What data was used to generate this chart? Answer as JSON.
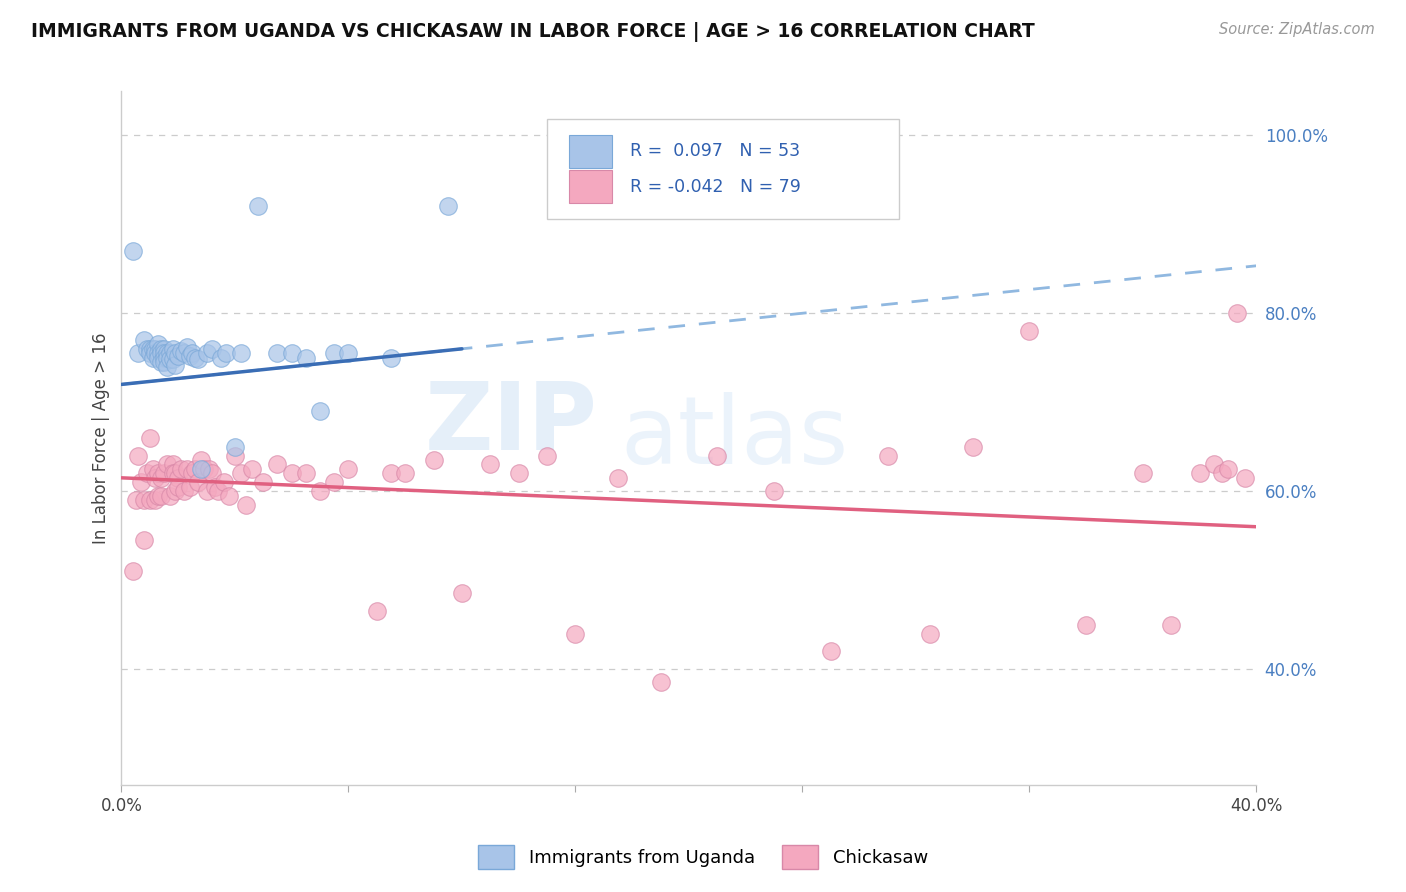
{
  "title": "IMMIGRANTS FROM UGANDA VS CHICKASAW IN LABOR FORCE | AGE > 16 CORRELATION CHART",
  "source": "Source: ZipAtlas.com",
  "ylabel": "In Labor Force | Age > 16",
  "xlim": [
    0.0,
    0.4
  ],
  "ylim": [
    0.27,
    1.05
  ],
  "xticks": [
    0.0,
    0.08,
    0.16,
    0.24,
    0.32,
    0.4
  ],
  "xtick_labels": [
    "0.0%",
    "",
    "",
    "",
    "",
    "40.0%"
  ],
  "yticks_right": [
    0.4,
    0.6,
    0.8,
    1.0
  ],
  "ytick_labels_right": [
    "40.0%",
    "60.0%",
    "80.0%",
    "100.0%"
  ],
  "legend_label1": "Immigrants from Uganda",
  "legend_label2": "Chickasaw",
  "color_blue": "#a8c4e8",
  "color_pink": "#f4a8bf",
  "color_blue_line": "#3a6db5",
  "color_pink_line": "#e06080",
  "color_blue_dashed": "#90b8e0",
  "watermark_zip": "ZIP",
  "watermark_atlas": "atlas",
  "blue_scatter_x": [
    0.004,
    0.006,
    0.008,
    0.009,
    0.01,
    0.01,
    0.011,
    0.011,
    0.012,
    0.012,
    0.013,
    0.013,
    0.013,
    0.014,
    0.014,
    0.014,
    0.015,
    0.015,
    0.015,
    0.015,
    0.016,
    0.016,
    0.016,
    0.017,
    0.017,
    0.018,
    0.018,
    0.019,
    0.019,
    0.02,
    0.021,
    0.022,
    0.023,
    0.024,
    0.025,
    0.026,
    0.027,
    0.028,
    0.03,
    0.032,
    0.035,
    0.037,
    0.04,
    0.042,
    0.048,
    0.055,
    0.06,
    0.065,
    0.07,
    0.075,
    0.08,
    0.095,
    0.115
  ],
  "blue_scatter_y": [
    0.87,
    0.755,
    0.77,
    0.76,
    0.76,
    0.755,
    0.76,
    0.75,
    0.76,
    0.755,
    0.765,
    0.755,
    0.75,
    0.76,
    0.755,
    0.745,
    0.76,
    0.755,
    0.75,
    0.745,
    0.755,
    0.75,
    0.74,
    0.755,
    0.748,
    0.76,
    0.748,
    0.755,
    0.742,
    0.752,
    0.758,
    0.755,
    0.762,
    0.752,
    0.755,
    0.75,
    0.748,
    0.625,
    0.755,
    0.76,
    0.75,
    0.755,
    0.65,
    0.755,
    0.92,
    0.755,
    0.755,
    0.75,
    0.69,
    0.755,
    0.755,
    0.75,
    0.92
  ],
  "pink_scatter_x": [
    0.004,
    0.005,
    0.006,
    0.007,
    0.008,
    0.008,
    0.009,
    0.01,
    0.01,
    0.011,
    0.012,
    0.012,
    0.013,
    0.013,
    0.014,
    0.014,
    0.015,
    0.016,
    0.017,
    0.018,
    0.018,
    0.019,
    0.019,
    0.02,
    0.02,
    0.021,
    0.022,
    0.023,
    0.024,
    0.025,
    0.026,
    0.027,
    0.028,
    0.029,
    0.03,
    0.031,
    0.032,
    0.033,
    0.034,
    0.036,
    0.038,
    0.04,
    0.042,
    0.044,
    0.046,
    0.05,
    0.055,
    0.06,
    0.065,
    0.07,
    0.075,
    0.08,
    0.09,
    0.095,
    0.1,
    0.11,
    0.12,
    0.13,
    0.14,
    0.15,
    0.16,
    0.175,
    0.19,
    0.21,
    0.23,
    0.25,
    0.27,
    0.285,
    0.3,
    0.32,
    0.34,
    0.36,
    0.37,
    0.38,
    0.385,
    0.388,
    0.39,
    0.393,
    0.396
  ],
  "pink_scatter_y": [
    0.51,
    0.59,
    0.64,
    0.61,
    0.59,
    0.545,
    0.62,
    0.66,
    0.59,
    0.625,
    0.615,
    0.59,
    0.595,
    0.62,
    0.615,
    0.595,
    0.62,
    0.63,
    0.595,
    0.63,
    0.62,
    0.6,
    0.62,
    0.615,
    0.605,
    0.625,
    0.6,
    0.625,
    0.605,
    0.62,
    0.625,
    0.61,
    0.635,
    0.625,
    0.6,
    0.625,
    0.62,
    0.605,
    0.6,
    0.61,
    0.595,
    0.64,
    0.62,
    0.585,
    0.625,
    0.61,
    0.63,
    0.62,
    0.62,
    0.6,
    0.61,
    0.625,
    0.465,
    0.62,
    0.62,
    0.635,
    0.485,
    0.63,
    0.62,
    0.64,
    0.44,
    0.615,
    0.385,
    0.64,
    0.6,
    0.42,
    0.64,
    0.44,
    0.65,
    0.78,
    0.45,
    0.62,
    0.45,
    0.62,
    0.63,
    0.62,
    0.625,
    0.8,
    0.615
  ],
  "blue_trend_x0": 0.0,
  "blue_trend_x1": 0.12,
  "blue_trend_y0": 0.72,
  "blue_trend_y1": 0.76,
  "pink_trend_x0": 0.0,
  "pink_trend_x1": 0.4,
  "pink_trend_y0": 0.615,
  "pink_trend_y1": 0.56
}
